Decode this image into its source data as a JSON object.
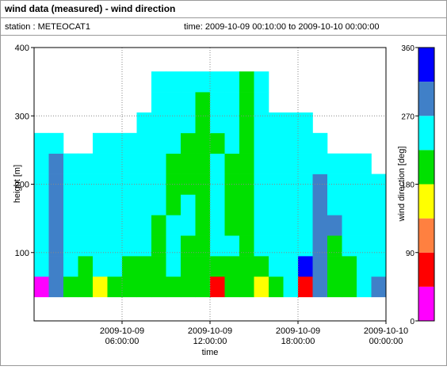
{
  "header": {
    "title": "wind data (measured) - wind direction",
    "station": "station : METEOCAT1",
    "time": "time: 2009-10-09 00:10:00 to 2009-10-10 00:00:00"
  },
  "chart_data": {
    "type": "heatmap",
    "xlabel": "time",
    "ylabel": "height [m]",
    "zlabel": "wind direction [deg]",
    "xlim": [
      0,
      24
    ],
    "xticks": [
      {
        "value": 6,
        "label": [
          "2009-10-09",
          "06:00:00"
        ]
      },
      {
        "value": 12,
        "label": [
          "2009-10-09",
          "12:00:00"
        ]
      },
      {
        "value": 18,
        "label": [
          "2009-10-09",
          "18:00:00"
        ]
      },
      {
        "value": 24,
        "label": [
          "2009-10-10",
          "00:00:00"
        ]
      }
    ],
    "ylim": [
      0,
      400
    ],
    "yticks": [
      100,
      200,
      300,
      400
    ],
    "zlim": [
      0,
      360
    ],
    "zticks": [
      0,
      90,
      180,
      270,
      360
    ],
    "grid": true,
    "x_edges": [
      0,
      1,
      2,
      3,
      4,
      5,
      6,
      7,
      8,
      9,
      10,
      11,
      12,
      13,
      14,
      15,
      16,
      17,
      18,
      19,
      20,
      21,
      22,
      23,
      24
    ],
    "y_edges": [
      35,
      65,
      95,
      125,
      155,
      185,
      215,
      245,
      275,
      305,
      335,
      365
    ],
    "colorscale": [
      {
        "from": 0,
        "to": 45,
        "color": "#ff00ff"
      },
      {
        "from": 45,
        "to": 90,
        "color": "#ff0000"
      },
      {
        "from": 90,
        "to": 135,
        "color": "#ff8040"
      },
      {
        "from": 135,
        "to": 180,
        "color": "#ffff00"
      },
      {
        "from": 180,
        "to": 225,
        "color": "#00e000"
      },
      {
        "from": 225,
        "to": 270,
        "color": "#00ffff"
      },
      {
        "from": 270,
        "to": 315,
        "color": "#4080c8"
      },
      {
        "from": 315,
        "to": 360,
        "color": "#0000ff"
      }
    ],
    "values": [
      [
        20,
        250,
        250,
        250,
        250,
        250,
        250,
        250,
        null,
        null,
        null
      ],
      [
        290,
        290,
        290,
        290,
        290,
        290,
        290,
        250,
        null,
        null,
        null
      ],
      [
        200,
        250,
        250,
        250,
        250,
        250,
        250,
        null,
        null,
        null,
        null
      ],
      [
        200,
        200,
        250,
        250,
        250,
        250,
        250,
        null,
        null,
        null,
        null
      ],
      [
        160,
        250,
        250,
        250,
        250,
        250,
        250,
        250,
        null,
        null,
        null
      ],
      [
        200,
        250,
        250,
        250,
        250,
        250,
        250,
        250,
        null,
        null,
        null
      ],
      [
        200,
        200,
        250,
        250,
        250,
        250,
        250,
        250,
        null,
        null,
        null
      ],
      [
        200,
        200,
        250,
        250,
        250,
        250,
        250,
        250,
        250,
        null,
        null
      ],
      [
        200,
        200,
        200,
        200,
        250,
        250,
        250,
        250,
        250,
        250,
        250
      ],
      [
        200,
        250,
        250,
        250,
        200,
        200,
        200,
        250,
        250,
        250,
        250
      ],
      [
        200,
        200,
        200,
        250,
        250,
        200,
        200,
        200,
        250,
        250,
        250
      ],
      [
        200,
        200,
        200,
        200,
        200,
        200,
        200,
        200,
        200,
        200,
        250
      ],
      [
        70,
        200,
        250,
        250,
        250,
        250,
        250,
        200,
        250,
        250,
        250
      ],
      [
        200,
        200,
        250,
        200,
        200,
        200,
        200,
        250,
        250,
        250,
        250
      ],
      [
        200,
        200,
        200,
        200,
        200,
        200,
        200,
        200,
        200,
        200,
        200
      ],
      [
        160,
        200,
        250,
        250,
        250,
        250,
        250,
        250,
        250,
        250,
        250
      ],
      [
        200,
        250,
        250,
        250,
        250,
        250,
        250,
        250,
        250,
        null,
        null
      ],
      [
        250,
        250,
        250,
        250,
        250,
        250,
        250,
        250,
        250,
        null,
        null
      ],
      [
        70,
        340,
        250,
        250,
        250,
        250,
        250,
        250,
        250,
        null,
        null
      ],
      [
        290,
        290,
        290,
        290,
        290,
        290,
        250,
        250,
        null,
        null,
        null
      ],
      [
        200,
        200,
        200,
        290,
        250,
        250,
        250,
        null,
        null,
        null,
        null
      ],
      [
        200,
        200,
        250,
        250,
        250,
        250,
        250,
        null,
        null,
        null,
        null
      ],
      [
        250,
        250,
        250,
        250,
        250,
        250,
        250,
        null,
        null,
        null,
        null
      ],
      [
        290,
        250,
        250,
        250,
        250,
        250,
        null,
        null,
        null,
        null,
        null
      ]
    ]
  }
}
